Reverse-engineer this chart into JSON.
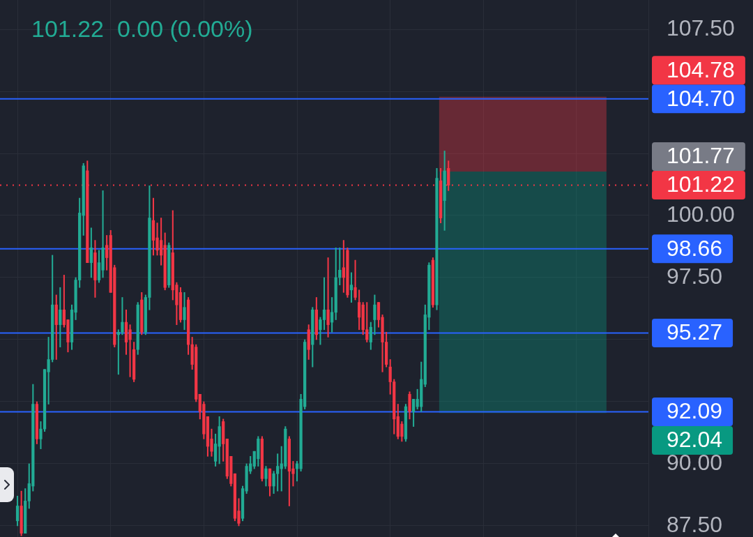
{
  "chart_data": {
    "type": "candlestick",
    "title": "101.22  0.00 (0.00%)",
    "categories": [
      null,
      null,
      null,
      null,
      null,
      null,
      null,
      null,
      null,
      null,
      null,
      null,
      null,
      null,
      null,
      null,
      null,
      null,
      null,
      null,
      null,
      null,
      null,
      null,
      null,
      null,
      null,
      null,
      null,
      null,
      null,
      null,
      null,
      null,
      null,
      null,
      null,
      null,
      null,
      null,
      null,
      null,
      null,
      null,
      null,
      null,
      null,
      null,
      null,
      null,
      null,
      null,
      null,
      null,
      null,
      null,
      null,
      null,
      null,
      null,
      null,
      null,
      null,
      null,
      null,
      null,
      null,
      null,
      null,
      null,
      null,
      null,
      null,
      null,
      null,
      null,
      null,
      null,
      null,
      null,
      null,
      null,
      null,
      null,
      null,
      null,
      null,
      null,
      null,
      null,
      null,
      null,
      null,
      null,
      null,
      null,
      null,
      null,
      null,
      null,
      null,
      null,
      null,
      null,
      null,
      null,
      null,
      null,
      null,
      null,
      null,
      null,
      null,
      null,
      null,
      null,
      null,
      null,
      null,
      null,
      null,
      null,
      null,
      null,
      null,
      null,
      null,
      null,
      null,
      null,
      null,
      null,
      null,
      null,
      null,
      null,
      null,
      null,
      null,
      null,
      null,
      null,
      null,
      null,
      null,
      null,
      null,
      null,
      null,
      null,
      null,
      null,
      null,
      null,
      null,
      null,
      null,
      null,
      null,
      null,
      null,
      null,
      null,
      null,
      null,
      null,
      null
    ],
    "ohlc": [
      null,
      null,
      null,
      null,
      [
        87.7,
        88.7,
        87.5,
        88.3
      ],
      [
        88.3,
        88.9,
        87.1,
        87.2
      ],
      [
        87.2,
        89.0,
        87.2,
        88.5
      ],
      [
        88.5,
        90.0,
        88.2,
        89.2
      ],
      [
        89.1,
        93.2,
        88.9,
        92.4
      ],
      [
        92.4,
        92.5,
        90.8,
        91.0
      ],
      [
        91.0,
        91.7,
        90.6,
        91.4
      ],
      [
        91.4,
        93.8,
        91.3,
        93.8
      ],
      [
        93.7,
        95.1,
        92.4,
        94.2
      ],
      [
        94.2,
        98.4,
        94.1,
        96.4
      ],
      [
        96.4,
        96.8,
        94.2,
        95.6
      ],
      [
        95.6,
        97.1,
        94.7,
        96.2
      ],
      [
        96.2,
        97.6,
        95.5,
        95.6
      ],
      [
        95.8,
        95.8,
        94.5,
        94.9
      ],
      [
        94.9,
        96.4,
        94.6,
        96.2
      ],
      [
        96.1,
        97.5,
        95.8,
        97.4
      ],
      [
        97.4,
        100.7,
        97.1,
        100.1
      ],
      [
        100.0,
        102.1,
        99.2,
        102.0
      ],
      [
        101.8,
        102.2,
        98.1,
        98.1
      ],
      [
        98.1,
        99.5,
        97.5,
        98.7
      ],
      [
        98.5,
        99.0,
        96.7,
        97.4
      ],
      [
        97.4,
        98.6,
        97.3,
        98.1
      ],
      [
        97.8,
        101.0,
        97.5,
        98.7
      ],
      [
        98.8,
        99.2,
        97.8,
        98.3
      ],
      [
        99.2,
        99.4,
        96.9,
        96.9
      ],
      [
        97.9,
        98.0,
        94.7,
        94.8
      ],
      [
        95.2,
        95.4,
        93.6,
        95.3
      ],
      [
        95.3,
        96.7,
        95.2,
        95.7
      ],
      [
        95.7,
        96.2,
        94.4,
        94.9
      ],
      [
        95.4,
        95.6,
        93.5,
        95.0
      ],
      [
        94.6,
        94.9,
        93.3,
        93.4
      ],
      [
        94.6,
        96.5,
        94.4,
        96.4
      ],
      [
        96.6,
        96.9,
        95.2,
        95.3
      ],
      [
        95.3,
        96.8,
        95.2,
        96.7
      ],
      [
        96.7,
        101.2,
        96.2,
        99.9
      ],
      [
        99.8,
        100.7,
        98.4,
        99.0
      ],
      [
        99.1,
        99.7,
        98.4,
        98.6
      ],
      [
        99.0,
        99.9,
        98.0,
        98.4
      ],
      [
        98.8,
        99.3,
        97.0,
        97.1
      ],
      [
        97.2,
        98.9,
        97.1,
        98.8
      ],
      [
        98.5,
        100.2,
        96.6,
        97.0
      ],
      [
        97.2,
        97.3,
        95.6,
        96.4
      ],
      [
        96.9,
        97.1,
        95.7,
        95.8
      ],
      [
        95.8,
        96.9,
        95.4,
        96.3
      ],
      [
        96.6,
        96.7,
        94.4,
        94.8
      ],
      [
        94.8,
        95.1,
        93.8,
        94.0
      ],
      [
        94.7,
        94.8,
        92.5,
        92.6
      ],
      [
        92.8,
        92.8,
        91.8,
        92.1
      ],
      [
        92.4,
        92.5,
        91.0,
        91.2
      ],
      [
        91.9,
        91.9,
        90.3,
        90.7
      ],
      [
        91.0,
        91.4,
        90.3,
        90.5
      ],
      [
        90.1,
        91.2,
        89.9,
        90.8
      ],
      [
        90.7,
        91.9,
        90.0,
        91.5
      ],
      [
        91.7,
        91.8,
        90.1,
        90.8
      ],
      [
        91.0,
        91.0,
        89.4,
        89.5
      ],
      [
        90.3,
        90.3,
        89.1,
        89.2
      ],
      [
        89.6,
        89.6,
        87.7,
        87.8
      ],
      [
        88.1,
        88.6,
        87.5,
        87.6
      ],
      [
        87.8,
        89.1,
        87.7,
        89.0
      ],
      [
        88.9,
        90.0,
        88.8,
        89.9
      ],
      [
        89.7,
        90.3,
        89.6,
        90.0
      ],
      [
        89.9,
        90.5,
        89.8,
        90.5
      ],
      [
        90.2,
        91.1,
        89.9,
        91.0
      ],
      [
        91.0,
        91.1,
        89.3,
        89.4
      ],
      [
        89.4,
        89.9,
        89.1,
        89.8
      ],
      [
        89.8,
        89.8,
        88.7,
        89.1
      ],
      [
        89.1,
        89.7,
        88.8,
        89.6
      ],
      [
        89.6,
        90.4,
        88.9,
        89.9
      ],
      [
        89.8,
        90.7,
        88.9,
        90.0
      ],
      [
        89.9,
        91.5,
        89.8,
        91.4
      ],
      [
        91.0,
        91.1,
        88.3,
        89.7
      ],
      [
        89.8,
        90.1,
        89.1,
        89.6
      ],
      [
        89.8,
        90.1,
        89.3,
        90.0
      ],
      [
        89.8,
        92.8,
        89.7,
        92.6
      ],
      [
        92.3,
        95.0,
        92.2,
        94.9
      ],
      [
        95.4,
        95.6,
        94.2,
        94.6
      ],
      [
        94.8,
        96.3,
        93.9,
        96.2
      ],
      [
        96.2,
        96.7,
        95.0,
        95.2
      ],
      [
        95.4,
        95.9,
        94.8,
        95.8
      ],
      [
        95.8,
        97.5,
        95.4,
        96.2
      ],
      [
        96.2,
        98.3,
        95.1,
        95.6
      ],
      [
        95.7,
        96.7,
        95.3,
        96.1
      ],
      [
        96.1,
        98.7,
        95.8,
        97.5
      ],
      [
        97.5,
        98.7,
        97.2,
        97.8
      ],
      [
        97.9,
        99.0,
        96.9,
        97.5
      ],
      [
        98.6,
        98.7,
        96.7,
        96.8
      ],
      [
        97.0,
        97.7,
        96.5,
        97.2
      ],
      [
        97.1,
        98.2,
        96.6,
        96.7
      ],
      [
        96.5,
        97.0,
        95.4,
        95.9
      ],
      [
        96.4,
        96.5,
        95.2,
        95.4
      ],
      [
        95.4,
        96.5,
        94.9,
        95.0
      ],
      [
        94.9,
        95.7,
        94.6,
        95.5
      ],
      [
        95.8,
        96.8,
        95.2,
        96.4
      ],
      [
        96.5,
        96.5,
        95.5,
        95.8
      ],
      [
        95.9,
        96.0,
        93.7,
        94.9
      ],
      [
        94.9,
        95.3,
        93.9,
        94.0
      ],
      [
        93.9,
        94.2,
        92.8,
        93.3
      ],
      [
        93.3,
        93.4,
        91.2,
        91.8
      ],
      [
        91.9,
        92.4,
        91.0,
        91.1
      ],
      [
        91.6,
        91.7,
        90.9,
        91.1
      ],
      [
        91.0,
        92.4,
        90.9,
        92.3
      ],
      [
        92.8,
        92.9,
        91.8,
        92.1
      ],
      [
        92.1,
        92.6,
        91.5,
        92.6
      ],
      [
        92.3,
        93.0,
        92.2,
        92.6
      ],
      [
        92.3,
        94.1,
        92.1,
        93.4
      ],
      [
        93.2,
        96.4,
        93.1,
        96.0
      ],
      [
        95.9,
        98.1,
        95.4,
        98.0
      ],
      [
        98.2,
        98.3,
        96.3,
        96.4
      ],
      [
        96.4,
        101.9,
        96.2,
        101.5
      ],
      [
        101.4,
        101.9,
        99.7,
        99.9
      ],
      [
        100.6,
        102.6,
        99.4,
        101.8
      ],
      [
        101.9,
        102.2,
        101.0,
        101.22
      ],
      null,
      null,
      null,
      null,
      null,
      null,
      null,
      null,
      null,
      null,
      null,
      null,
      null,
      null,
      null,
      null,
      null,
      null,
      null,
      null,
      null,
      null,
      null,
      null,
      null,
      null,
      null,
      null,
      null,
      null,
      null,
      null,
      null,
      null,
      null,
      null,
      null,
      null,
      null,
      null,
      null,
      null,
      null,
      null,
      null,
      null,
      null,
      null,
      null,
      null,
      null
    ],
    "ylim": [
      87.05,
      108.68
    ],
    "yticks": [
      {
        "value": 87.5,
        "label": "87.50"
      },
      {
        "value": 90,
        "label": "90.00"
      },
      {
        "value": 92.5,
        "label": null
      },
      {
        "value": 95,
        "label": null
      },
      {
        "value": 97.5,
        "label": "97.50"
      },
      {
        "value": 100,
        "label": "100.00"
      },
      {
        "value": 102.5,
        "label": null
      },
      {
        "value": 105,
        "label": null
      },
      {
        "value": 107.5,
        "label": "107.50"
      }
    ],
    "grid": true,
    "tick_labels": "y",
    "ref_lines": [
      {
        "axis": "y",
        "value": 104.7,
        "label": "104.70",
        "color": "#2962ff",
        "line_style": "solid"
      },
      {
        "axis": "y",
        "value": 98.66,
        "label": "98.66",
        "color": "#2962ff",
        "line_style": "solid"
      },
      {
        "axis": "y",
        "value": 95.27,
        "label": "95.27",
        "color": "#2962ff",
        "line_style": "solid"
      },
      {
        "axis": "y",
        "value": 92.09,
        "label": "92.09",
        "color": "#2962ff",
        "line_style": "solid"
      },
      {
        "axis": "y",
        "value": 101.22,
        "label": "101.22",
        "color": "#f23645",
        "line_style": "dotted"
      }
    ],
    "bands": [
      {
        "axis": "y",
        "from": 104.78,
        "to": 101.77,
        "color": "#f23645"
      },
      {
        "axis": "y",
        "from": 92.04,
        "to": 101.77,
        "color": "#089981"
      }
    ],
    "annotations": [
      "104.78",
      "101.77",
      "92.04"
    ]
  }
}
